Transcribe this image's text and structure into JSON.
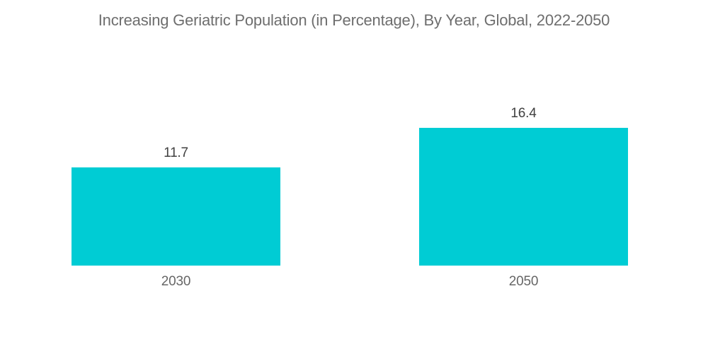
{
  "chart_data": {
    "type": "bar",
    "title": "Increasing Geriatric Population (in Percentage), By Year, Global, 2022-2050",
    "categories": [
      "2030",
      "2050"
    ],
    "values": [
      11.7,
      16.4
    ],
    "value_labels": [
      "11.7",
      "16.4"
    ],
    "xlabel": "",
    "ylabel": "",
    "axes_visible": false,
    "grid": false,
    "legend": false,
    "bar_color": "#00ccd4",
    "title_color": "#6e6e6e",
    "value_label_color": "#404040",
    "category_label_color": "#666666",
    "background_color": "#ffffff"
  }
}
